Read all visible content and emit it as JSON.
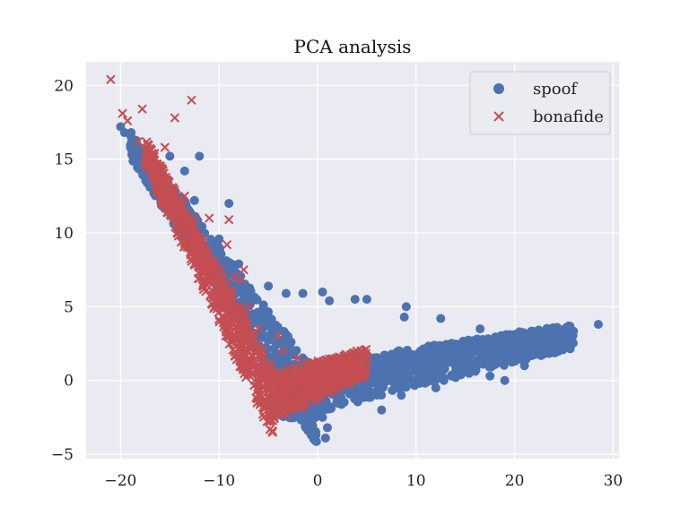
{
  "chart_data": {
    "type": "scatter",
    "title": "PCA analysis",
    "xlabel": "",
    "ylabel": "",
    "xlim": [
      -23.5,
      30.6
    ],
    "ylim": [
      -5.3,
      21.6
    ],
    "x_ticks": [
      -20,
      -10,
      0,
      10,
      20,
      30
    ],
    "y_ticks": [
      -5,
      0,
      5,
      10,
      15,
      20
    ],
    "x_tick_labels": [
      "−20",
      "−10",
      "0",
      "10",
      "20",
      "30"
    ],
    "y_tick_labels": [
      "−5",
      "0",
      "5",
      "10",
      "15",
      "20"
    ],
    "grid": true,
    "legend": {
      "position": "top-right"
    },
    "colors": {
      "spoof": "#4c72b0",
      "bonafide": "#c44e52",
      "background": "#eaeaf2",
      "grid": "#ffffff"
    },
    "series": [
      {
        "name": "spoof",
        "marker": "circle",
        "points": [
          [
            -20.0,
            17.2
          ],
          [
            -19.6,
            16.8
          ],
          [
            -19.0,
            15.8
          ],
          [
            -15.0,
            15.2
          ],
          [
            -12.0,
            15.2
          ],
          [
            -13.5,
            14.2
          ],
          [
            -12.5,
            12.2
          ],
          [
            -9.0,
            12.0
          ],
          [
            -10.0,
            9.6
          ],
          [
            -8.0,
            7.9
          ],
          [
            -5.0,
            6.4
          ],
          [
            -3.2,
            5.9
          ],
          [
            -1.5,
            5.9
          ],
          [
            0.5,
            6.0
          ],
          [
            1.2,
            5.4
          ],
          [
            3.8,
            5.5
          ],
          [
            5.0,
            5.5
          ],
          [
            9.0,
            5.0
          ],
          [
            8.8,
            4.3
          ],
          [
            12.5,
            4.2
          ],
          [
            28.5,
            3.8
          ],
          [
            25.8,
            3.2
          ],
          [
            24.5,
            3.2
          ],
          [
            22.0,
            2.8
          ],
          [
            20.0,
            2.5
          ],
          [
            17.5,
            2.2
          ],
          [
            15.5,
            2.0
          ],
          [
            13.5,
            1.8
          ],
          [
            11.5,
            1.6
          ],
          [
            9.5,
            1.4
          ],
          [
            7.5,
            1.2
          ],
          [
            5.5,
            1.0
          ],
          [
            3.5,
            0.8
          ],
          [
            1.5,
            0.6
          ],
          [
            -0.5,
            0.3
          ],
          [
            0.5,
            -2.5
          ],
          [
            1.0,
            -3.2
          ],
          [
            0.8,
            -3.9
          ],
          [
            -0.2,
            -3.5
          ],
          [
            -1.2,
            -3.2
          ],
          [
            6.5,
            -2.0
          ],
          [
            8.5,
            -1.0
          ],
          [
            12.0,
            -0.5
          ],
          [
            17.5,
            0.3
          ],
          [
            21.0,
            1.0
          ],
          [
            23.0,
            1.8
          ],
          [
            19.0,
            0.0
          ],
          [
            14.0,
            0.5
          ],
          [
            16.5,
            3.5
          ],
          [
            20.5,
            3.3
          ]
        ]
      },
      {
        "name": "bonafide",
        "marker": "x",
        "points": [
          [
            -21.0,
            20.4
          ],
          [
            -19.8,
            18.1
          ],
          [
            -19.3,
            17.6
          ],
          [
            -17.8,
            18.4
          ],
          [
            -14.5,
            17.8
          ],
          [
            -12.8,
            19.0
          ],
          [
            -18.2,
            16.2
          ],
          [
            -17.0,
            15.2
          ],
          [
            -15.5,
            15.8
          ],
          [
            -16.5,
            14.2
          ],
          [
            -15.0,
            13.0
          ],
          [
            -14.0,
            11.8
          ],
          [
            -13.0,
            10.5
          ],
          [
            -12.2,
            9.5
          ],
          [
            -11.5,
            9.0
          ],
          [
            -11.0,
            11.0
          ],
          [
            -9.0,
            10.9
          ],
          [
            -9.2,
            9.2
          ],
          [
            -8.5,
            7.0
          ],
          [
            -7.5,
            7.5
          ],
          [
            -7.8,
            6.8
          ],
          [
            -7.0,
            5.0
          ],
          [
            -6.0,
            3.5
          ],
          [
            -5.5,
            2.0
          ],
          [
            -5.0,
            0.5
          ],
          [
            -4.5,
            -1.0
          ],
          [
            -4.5,
            -2.0
          ],
          [
            -3.5,
            -0.5
          ],
          [
            -2.0,
            0.5
          ],
          [
            0.0,
            1.0
          ],
          [
            2.0,
            1.5
          ],
          [
            4.0,
            2.0
          ],
          [
            5.0,
            1.2
          ],
          [
            3.0,
            0.0
          ],
          [
            1.0,
            -0.5
          ],
          [
            -1.0,
            -1.0
          ],
          [
            -2.0,
            1.5
          ],
          [
            -3.5,
            2.0
          ],
          [
            -4.0,
            3.0
          ],
          [
            -9.8,
            7.5
          ],
          [
            -10.5,
            8.0
          ],
          [
            -12.5,
            11.0
          ],
          [
            -13.5,
            12.5
          ]
        ]
      }
    ]
  }
}
